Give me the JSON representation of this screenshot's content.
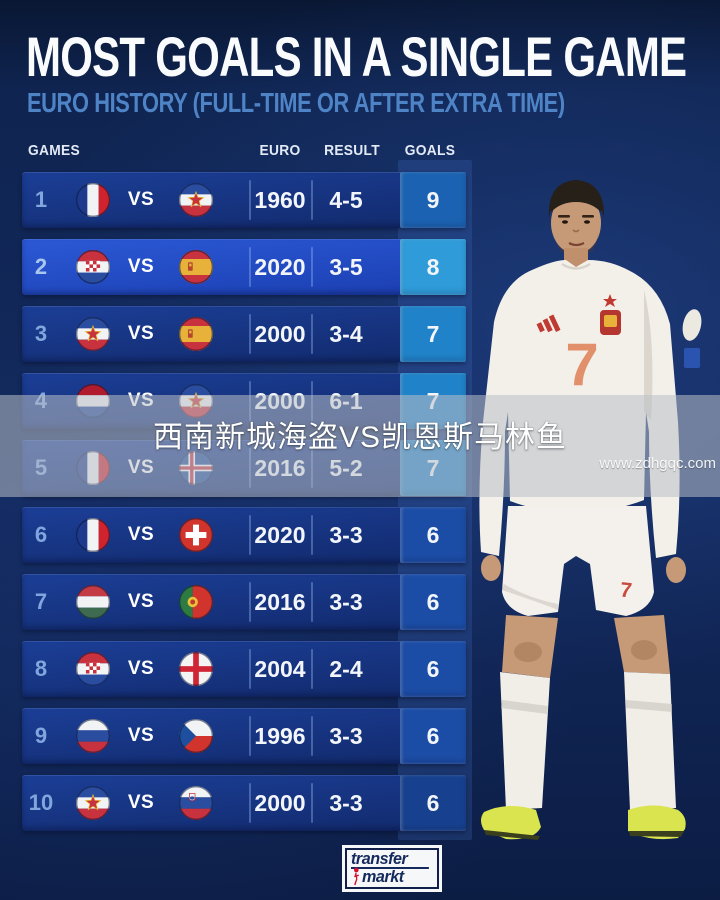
{
  "header": {
    "title": "MOST GOALS IN A SINGLE GAME",
    "subtitle": "EURO HISTORY (FULL-TIME OR AFTER EXTRA TIME)"
  },
  "table": {
    "columns": {
      "games": "GAMES",
      "euro": "EURO",
      "result": "RESULT",
      "goals": "GOALS"
    },
    "vs_label": "VS",
    "rows": [
      {
        "rank": "1",
        "team1": "france",
        "team2": "yugoslavia",
        "euro": "1960",
        "result": "4-5",
        "goals": "9",
        "highlight": false
      },
      {
        "rank": "2",
        "team1": "croatia",
        "team2": "spain",
        "euro": "2020",
        "result": "3-5",
        "goals": "8",
        "highlight": true
      },
      {
        "rank": "3",
        "team1": "yugoslavia",
        "team2": "spain",
        "euro": "2000",
        "result": "3-4",
        "goals": "7",
        "highlight": false
      },
      {
        "rank": "4",
        "team1": "netherlands",
        "team2": "yugoslavia",
        "euro": "2000",
        "result": "6-1",
        "goals": "7",
        "highlight": false
      },
      {
        "rank": "5",
        "team1": "france",
        "team2": "iceland",
        "euro": "2016",
        "result": "5-2",
        "goals": "7",
        "highlight": false
      },
      {
        "rank": "6",
        "team1": "france",
        "team2": "switzerland",
        "euro": "2020",
        "result": "3-3",
        "goals": "6",
        "highlight": false
      },
      {
        "rank": "7",
        "team1": "hungary",
        "team2": "portugal",
        "euro": "2016",
        "result": "3-3",
        "goals": "6",
        "highlight": false
      },
      {
        "rank": "8",
        "team1": "croatia",
        "team2": "england",
        "euro": "2004",
        "result": "2-4",
        "goals": "6",
        "highlight": false
      },
      {
        "rank": "9",
        "team1": "russia",
        "team2": "czech",
        "euro": "1996",
        "result": "3-3",
        "goals": "6",
        "highlight": false
      },
      {
        "rank": "10",
        "team1": "yugoslavia",
        "team2": "slovenia",
        "euro": "2000",
        "result": "3-3",
        "goals": "6",
        "highlight": false
      }
    ]
  },
  "overlay": {
    "caption": "西南新城海盗VS凯恩斯马林鱼",
    "watermark": "www.zdhgqc.com"
  },
  "player": {
    "shirt_number": "7",
    "shorts_number": "7"
  },
  "footer": {
    "logo_line1": "transfer",
    "logo_line2": "markt"
  },
  "colors": {
    "background": "#0f2354",
    "subtitle": "#4e84c6",
    "row": "#16337f",
    "row_highlight": "#2453cd",
    "rank": "#7fa6dd",
    "goals_cells": [
      "#1b63b2",
      "#2f9bd9",
      "#2082c8",
      "#2082c8",
      "#2082c8",
      "#1c4da6",
      "#1c4da6",
      "#1c4da6",
      "#1c4da6",
      "#17418f"
    ],
    "boot": "#d9e44f",
    "logo_red": "#d6112e",
    "logo_navy": "#14295c"
  },
  "chart_data": {
    "type": "table",
    "title": "MOST GOALS IN A SINGLE GAME",
    "subtitle": "EURO HISTORY (FULL-TIME OR AFTER EXTRA TIME)",
    "columns": [
      "GAMES",
      "EURO",
      "RESULT",
      "GOALS"
    ],
    "rows": [
      [
        "1",
        "France vs Yugoslavia",
        "1960",
        "4-5",
        9
      ],
      [
        "2",
        "Croatia vs Spain",
        "2020",
        "3-5",
        8
      ],
      [
        "3",
        "Yugoslavia vs Spain",
        "2000",
        "3-4",
        7
      ],
      [
        "4",
        "Netherlands vs Yugoslavia",
        "2000",
        "6-1",
        7
      ],
      [
        "5",
        "France vs Iceland",
        "2016",
        "5-2",
        7
      ],
      [
        "6",
        "France vs Switzerland",
        "2020",
        "3-3",
        6
      ],
      [
        "7",
        "Hungary vs Portugal",
        "2016",
        "3-3",
        6
      ],
      [
        "8",
        "Croatia vs England",
        "2004",
        "2-4",
        6
      ],
      [
        "9",
        "Russia vs Czech Republic",
        "1996",
        "3-3",
        6
      ],
      [
        "10",
        "Yugoslavia vs Slovenia",
        "2000",
        "3-3",
        6
      ]
    ],
    "legend_position": "none",
    "grid": false
  }
}
